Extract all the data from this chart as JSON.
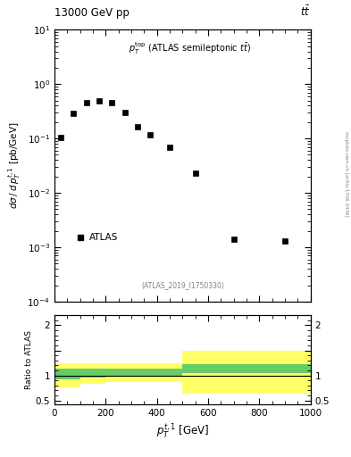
{
  "title_left": "13000 GeV pp",
  "title_right": "tt",
  "annotation": "p_{T}^{top} (ATLAS semileptonic ttbar)",
  "ref_label": "(ATLAS_2019_I1750330)",
  "side_label": "mcplots.cern.ch [arXiv:1306.3436]",
  "data_x": [
    25,
    75,
    125,
    175,
    225,
    275,
    325,
    375,
    450,
    550,
    700,
    900
  ],
  "data_y": [
    0.105,
    0.29,
    0.45,
    0.5,
    0.45,
    0.3,
    0.165,
    0.115,
    0.068,
    0.023,
    0.0014,
    0.0013
  ],
  "ylabel_main": "dσ / d p_{T}^{t,1} [pb/GeV]",
  "ylabel_ratio": "Ratio to ATLAS",
  "xlabel": "p_{T}^{t,1} [GeV]",
  "xlim": [
    0,
    1000
  ],
  "ylim_main_log": [
    -4,
    1
  ],
  "ylim_ratio": [
    0.42,
    2.2
  ],
  "legend_label": "ATLAS",
  "ratio_x_edges": [
    0,
    100,
    200,
    250,
    300,
    350,
    400,
    450,
    500,
    1000
  ],
  "ratio_green_lo": [
    0.92,
    0.95,
    0.97,
    0.97,
    0.97,
    0.97,
    0.97,
    0.97,
    1.04,
    1.04
  ],
  "ratio_green_hi": [
    1.13,
    1.13,
    1.13,
    1.13,
    1.13,
    1.13,
    1.13,
    1.13,
    1.22,
    1.22
  ],
  "ratio_yellow_lo": [
    0.76,
    0.83,
    0.86,
    0.86,
    0.86,
    0.86,
    0.86,
    0.86,
    0.64,
    0.64
  ],
  "ratio_yellow_hi": [
    1.25,
    1.25,
    1.25,
    1.25,
    1.25,
    1.25,
    1.25,
    1.25,
    1.5,
    1.5
  ],
  "marker_color": "black",
  "marker_style": "s",
  "marker_size": 4,
  "green_color": "#66cc66",
  "yellow_color": "#ffff66",
  "background_color": "#ffffff"
}
